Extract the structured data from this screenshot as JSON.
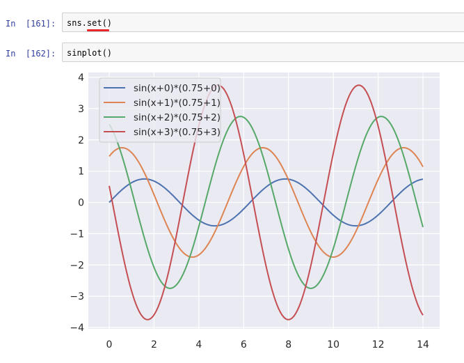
{
  "cells": [
    {
      "prompt": "In  [161]:",
      "code": "sns.set()"
    },
    {
      "prompt": "In  [162]:",
      "code": "sinplot()"
    }
  ],
  "colors": {
    "plot_bg": "#eaeaf2",
    "grid": "#ffffff",
    "prompt": "#303f9f",
    "cell_bg": "#f7f7f7",
    "cell_border": "#cfcfcf",
    "error_underline": "#e8262b"
  },
  "chart_data": {
    "type": "line",
    "title": "",
    "xlabel": "",
    "ylabel": "",
    "xlim": [
      0,
      14
    ],
    "ylim": [
      -4,
      4
    ],
    "xticks": [
      0,
      2,
      4,
      6,
      8,
      10,
      12,
      14
    ],
    "yticks": [
      -4,
      -3,
      -2,
      -1,
      0,
      1,
      2,
      3,
      4
    ],
    "grid": true,
    "legend_position": "top-left",
    "series": [
      {
        "name": "sin(x+0)*(0.75+0)",
        "color": "#4c72b0",
        "phase": 0,
        "amplitude": 0.75,
        "x": [
          0,
          1,
          2,
          3,
          4,
          5,
          6,
          7,
          8,
          9,
          10,
          11,
          12,
          13,
          14
        ],
        "y": [
          0.0,
          0.63,
          0.68,
          0.11,
          -0.57,
          -0.72,
          -0.21,
          0.49,
          0.74,
          0.31,
          -0.41,
          -0.75,
          -0.4,
          0.32,
          0.74
        ]
      },
      {
        "name": "sin(x+1)*(0.75+1)",
        "color": "#dd8452",
        "phase": 1,
        "amplitude": 1.75,
        "x": [
          0,
          1,
          2,
          3,
          4,
          5,
          6,
          7,
          8,
          9,
          10,
          11,
          12,
          13,
          14
        ],
        "y": [
          1.47,
          1.59,
          0.25,
          -1.32,
          -1.68,
          -0.49,
          1.15,
          1.73,
          0.72,
          -0.95,
          -1.75,
          -0.94,
          0.74,
          1.73,
          1.14
        ]
      },
      {
        "name": "sin(x+2)*(0.75+2)",
        "color": "#55a868",
        "phase": 2,
        "amplitude": 2.75,
        "x": [
          0,
          1,
          2,
          3,
          4,
          5,
          6,
          7,
          8,
          9,
          10,
          11,
          12,
          13,
          14
        ],
        "y": [
          2.5,
          0.39,
          -2.08,
          -2.64,
          -0.77,
          1.81,
          2.72,
          1.13,
          -1.5,
          -2.75,
          -1.47,
          1.16,
          2.72,
          1.79,
          -0.8
        ]
      },
      {
        "name": "sin(x+3)*(0.75+3)",
        "color": "#c44e52",
        "phase": 3,
        "amplitude": 3.75,
        "x": [
          0,
          1,
          2,
          3,
          4,
          5,
          6,
          7,
          8,
          9,
          10,
          11,
          12,
          13,
          14
        ],
        "y": [
          0.53,
          -2.84,
          -3.6,
          -1.05,
          2.46,
          3.71,
          1.54,
          -2.05,
          -3.75,
          -2.01,
          1.58,
          3.72,
          2.42,
          -1.1,
          -3.61
        ]
      }
    ]
  }
}
